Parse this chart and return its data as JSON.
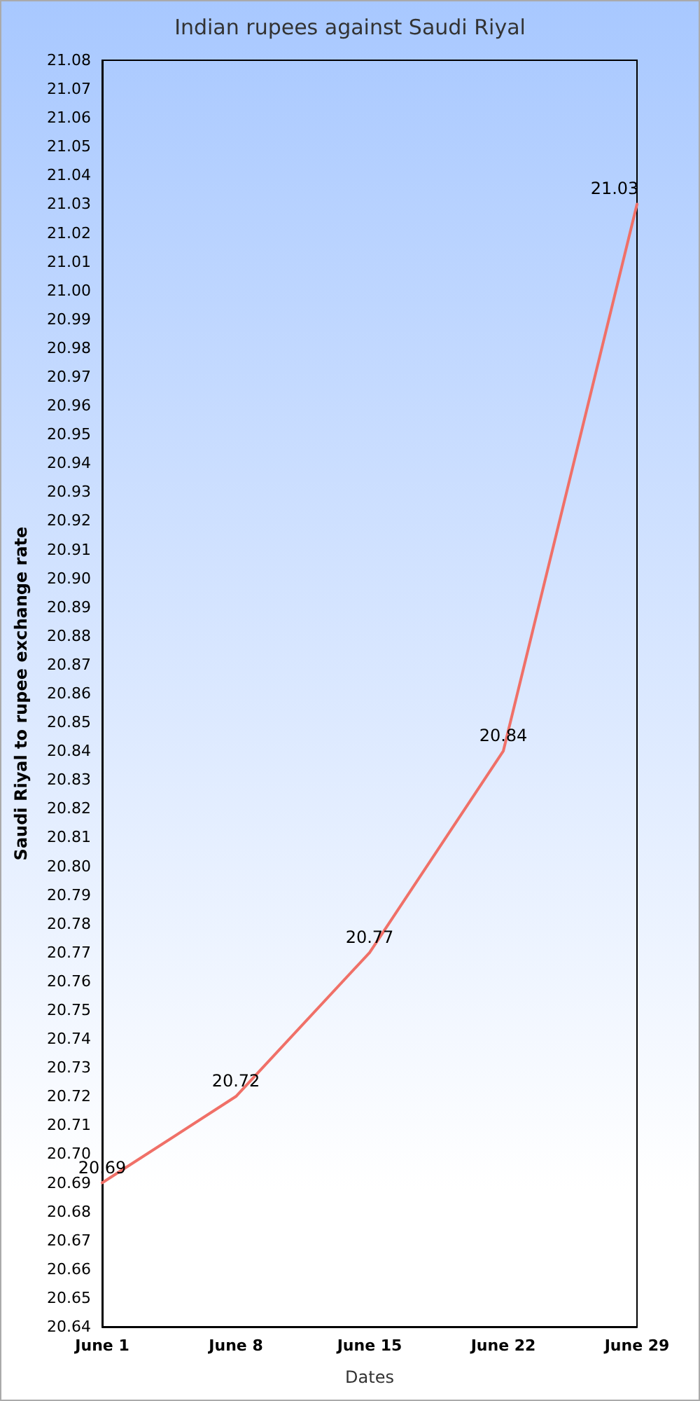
{
  "chart_data": {
    "type": "line",
    "title": "Indian rupees against Saudi Riyal",
    "xlabel": "Dates",
    "ylabel": "Saudi Riyal to rupee exchange rate",
    "categories": [
      "June 1",
      "June 8",
      "June 15",
      "June 22",
      "June 29"
    ],
    "series": [
      {
        "color": "#f07068",
        "values": [
          20.69,
          20.72,
          20.77,
          20.84,
          21.03
        ]
      }
    ],
    "ylim": [
      20.64,
      21.08
    ],
    "yticks": [
      20.64,
      20.65,
      20.66,
      20.67,
      20.68,
      20.69,
      {
        "value": 20.7,
        "label": "20.70"
      },
      20.71,
      20.72,
      20.73,
      20.74,
      20.75,
      20.76,
      20.77,
      20.78,
      20.79,
      {
        "value": 20.8,
        "label": "20.80"
      },
      20.81,
      20.82,
      20.83,
      20.84,
      20.85,
      20.86,
      20.87,
      20.88,
      20.89,
      {
        "value": 20.9,
        "label": "20.90"
      },
      20.91,
      20.92,
      20.93,
      20.94,
      20.95,
      20.96,
      20.97,
      20.98,
      20.99,
      {
        "value": 21,
        "label": "21.00"
      },
      21.01,
      21.02,
      21.03,
      21.04,
      21.05,
      21.06,
      21.07,
      21.08
    ],
    "grid": false,
    "marker": "none",
    "line_style": "solid",
    "data_labels": true
  }
}
